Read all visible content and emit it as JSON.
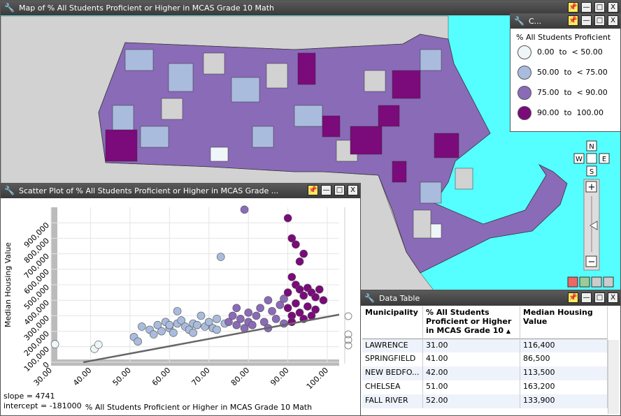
{
  "map_window": {
    "title": "Map of % All Students Proficient or Higher in MCAS Grade 10 Math"
  },
  "legend_window": {
    "title": "C...",
    "heading": "% All Students Proficient",
    "classes": [
      {
        "from": 0,
        "to": 50,
        "label": "0.00  to  < 50.00",
        "color": "#eef6f7"
      },
      {
        "from": 50,
        "to": 75,
        "label": "50.00  to  < 75.00",
        "color": "#a9bcdd"
      },
      {
        "from": 75,
        "to": 90,
        "label": "75.00  to  < 90.00",
        "color": "#8a6bb8"
      },
      {
        "from": 90,
        "to": 100,
        "label": "90.00  to  100.00",
        "color": "#7b0a7b"
      }
    ]
  },
  "navigation": {
    "north": "N",
    "west": "W",
    "east": "E",
    "south": "S",
    "zoom_in": "+",
    "zoom_out": "−"
  },
  "scatter_window": {
    "title": "Scatter Plot of % All Students Proficient or Higher in MCAS Grade ...",
    "chart": {
      "type": "scatter",
      "xlabel": "% All Students Proficient or Higher in MCAS Grade 10 Math",
      "ylabel": "Median Housing Value",
      "xlim": [
        30,
        103
      ],
      "ylim": [
        0,
        1000000
      ],
      "xticks": [
        {
          "value": 30,
          "label": "30.00"
        },
        {
          "value": 40,
          "label": "40.00"
        },
        {
          "value": 50,
          "label": "50.00"
        },
        {
          "value": 60,
          "label": "60.00"
        },
        {
          "value": 70,
          "label": "70.00"
        },
        {
          "value": 80,
          "label": "80.00"
        },
        {
          "value": 90,
          "label": "90.00"
        },
        {
          "value": 100,
          "label": "100.00"
        }
      ],
      "yticks": [
        0,
        {
          "value": 100000,
          "label": "100,000"
        },
        {
          "value": 200000,
          "label": "200,000"
        },
        {
          "value": 300000,
          "label": "300,000"
        },
        {
          "value": 400000,
          "label": "400,000"
        },
        {
          "value": 500000,
          "label": "500,000"
        },
        {
          "value": 600000,
          "label": "600,000"
        },
        {
          "value": 700000,
          "label": "700,000"
        },
        {
          "value": 800000,
          "label": "800,000"
        },
        {
          "value": 900000,
          "label": "900,000"
        }
      ],
      "x": [
        31,
        41,
        42,
        51,
        52,
        53,
        55,
        56,
        57,
        58,
        59,
        60,
        61,
        62,
        62,
        63,
        64,
        65,
        66,
        67,
        68,
        69,
        70,
        71,
        72,
        73,
        74,
        72,
        66,
        60,
        75,
        76,
        77,
        77,
        78,
        79,
        80,
        80,
        81,
        82,
        83,
        84,
        85,
        85,
        86,
        87,
        88,
        89,
        89,
        79,
        90,
        91,
        92,
        93,
        94,
        91,
        92,
        93,
        94,
        95,
        96,
        97,
        98,
        90,
        91,
        92,
        93,
        94,
        95,
        96,
        97,
        99,
        91,
        90
      ],
      "y": [
        116400,
        86500,
        113500,
        163200,
        133900,
        230000,
        210000,
        180000,
        240000,
        200000,
        260000,
        220000,
        190000,
        250000,
        330000,
        270000,
        230000,
        210000,
        250000,
        240000,
        300000,
        230000,
        260000,
        220000,
        280000,
        680000,
        250000,
        210000,
        190000,
        240000,
        260000,
        300000,
        240000,
        350000,
        280000,
        220000,
        320000,
        260000,
        240000,
        300000,
        350000,
        260000,
        400000,
        220000,
        330000,
        280000,
        370000,
        410000,
        250000,
        985000,
        930000,
        800000,
        760000,
        650000,
        700000,
        550000,
        500000,
        470000,
        430000,
        480000,
        450000,
        420000,
        470000,
        350000,
        300000,
        380000,
        320000,
        280000,
        360000,
        300000,
        340000,
        400000,
        260000,
        450000
      ],
      "trend": {
        "slope": 4741,
        "intercept": -181000,
        "color": "#666666"
      },
      "stats": [
        "slope = 4741",
        "intercept = -181000"
      ]
    }
  },
  "table_window": {
    "title": "Data Table",
    "columns": [
      "Municipality",
      "% All Students Proficient or Higher in MCAS Grade 10",
      "Median Housing Value"
    ],
    "sort_arrow": "▲",
    "rows": [
      [
        "LAWRENCE",
        "31.00",
        "116,400"
      ],
      [
        "SPRINGFIELD",
        "41.00",
        "86,500"
      ],
      [
        "NEW BEDFO...",
        "42.00",
        "113,500"
      ],
      [
        "CHELSEA",
        "51.00",
        "163,200"
      ],
      [
        "FALL RIVER",
        "52.00",
        "133,900"
      ]
    ]
  }
}
